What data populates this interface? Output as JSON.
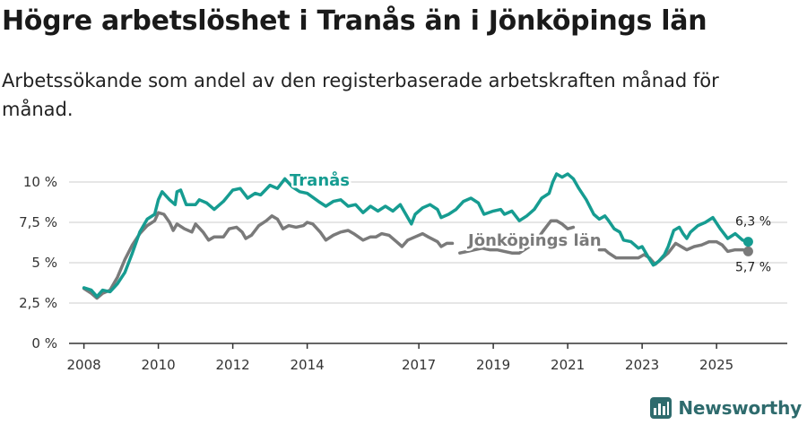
{
  "title": "Högre arbetslöshet i Tranås än i Jönköpings län",
  "subtitle": "Arbetssökande som andel av den registerbaserade arbetskraften månad för månad.",
  "brand": "Newsworthy",
  "colors": {
    "tranas": "#169c91",
    "jonkoping": "#7a7a7a",
    "grid": "#dddddd",
    "axis": "#333333"
  },
  "chart_data": {
    "type": "line",
    "ylim": [
      0,
      10
    ],
    "xlim": [
      2007.6,
      2026.9
    ],
    "y_ticks": [
      0,
      2.5,
      5,
      7.5,
      10
    ],
    "y_tick_labels": [
      "0 %",
      "2,5 %",
      "5 %",
      "7,5 %",
      "10 %"
    ],
    "x_ticks": [
      2008,
      2010,
      2012,
      2014,
      2017,
      2019,
      2021,
      2023,
      2025
    ],
    "x_tick_labels": [
      "2008",
      "2010",
      "2012",
      "2014",
      "2017",
      "2019",
      "2021",
      "2023",
      "2025"
    ],
    "grid": true,
    "series": [
      {
        "name": "Tranås",
        "label": "Tranås",
        "end_label": "6,3 %",
        "points": [
          [
            2008.0,
            3.45
          ],
          [
            2008.2,
            3.3
          ],
          [
            2008.35,
            2.9
          ],
          [
            2008.5,
            3.3
          ],
          [
            2008.7,
            3.2
          ],
          [
            2008.9,
            3.7
          ],
          [
            2009.1,
            4.4
          ],
          [
            2009.3,
            5.6
          ],
          [
            2009.5,
            6.9
          ],
          [
            2009.7,
            7.7
          ],
          [
            2009.9,
            8.0
          ],
          [
            2010.0,
            8.9
          ],
          [
            2010.1,
            9.4
          ],
          [
            2010.3,
            8.9
          ],
          [
            2010.45,
            8.6
          ],
          [
            2010.5,
            9.4
          ],
          [
            2010.6,
            9.5
          ],
          [
            2010.75,
            8.6
          ],
          [
            2011.0,
            8.6
          ],
          [
            2011.1,
            8.9
          ],
          [
            2011.3,
            8.7
          ],
          [
            2011.5,
            8.3
          ],
          [
            2011.75,
            8.8
          ],
          [
            2012.0,
            9.5
          ],
          [
            2012.2,
            9.6
          ],
          [
            2012.4,
            9.0
          ],
          [
            2012.6,
            9.3
          ],
          [
            2012.75,
            9.2
          ],
          [
            2013.0,
            9.8
          ],
          [
            2013.2,
            9.6
          ],
          [
            2013.4,
            10.2
          ],
          [
            2013.6,
            9.7
          ],
          [
            2013.8,
            9.4
          ],
          [
            2014.0,
            9.3
          ],
          [
            2014.3,
            8.8
          ],
          [
            2014.5,
            8.5
          ],
          [
            2014.7,
            8.8
          ],
          [
            2014.9,
            8.9
          ],
          [
            2015.1,
            8.5
          ],
          [
            2015.3,
            8.6
          ],
          [
            2015.5,
            8.1
          ],
          [
            2015.7,
            8.5
          ],
          [
            2015.9,
            8.2
          ],
          [
            2016.1,
            8.5
          ],
          [
            2016.3,
            8.2
          ],
          [
            2016.5,
            8.6
          ],
          [
            2016.65,
            8.0
          ],
          [
            2016.8,
            7.4
          ],
          [
            2016.9,
            8.0
          ],
          [
            2017.1,
            8.4
          ],
          [
            2017.3,
            8.6
          ],
          [
            2017.5,
            8.3
          ],
          [
            2017.6,
            7.8
          ],
          [
            2017.8,
            8.0
          ],
          [
            2018.0,
            8.3
          ],
          [
            2018.2,
            8.8
          ],
          [
            2018.4,
            9.0
          ],
          [
            2018.6,
            8.7
          ],
          [
            2018.75,
            8.0
          ],
          [
            2019.0,
            8.2
          ],
          [
            2019.2,
            8.3
          ],
          [
            2019.3,
            8.0
          ],
          [
            2019.5,
            8.2
          ],
          [
            2019.7,
            7.6
          ],
          [
            2019.9,
            7.9
          ],
          [
            2020.1,
            8.3
          ],
          [
            2020.3,
            9.0
          ],
          [
            2020.5,
            9.3
          ],
          [
            2020.6,
            10.0
          ],
          [
            2020.7,
            10.5
          ],
          [
            2020.85,
            10.3
          ],
          [
            2021.0,
            10.5
          ],
          [
            2021.15,
            10.2
          ],
          [
            2021.3,
            9.6
          ],
          [
            2021.5,
            8.9
          ],
          [
            2021.7,
            8.0
          ],
          [
            2021.85,
            7.7
          ],
          [
            2022.0,
            7.9
          ],
          [
            2022.1,
            7.6
          ],
          [
            2022.25,
            7.1
          ],
          [
            2022.4,
            6.9
          ],
          [
            2022.5,
            6.4
          ],
          [
            2022.7,
            6.3
          ],
          [
            2022.9,
            5.9
          ],
          [
            2023.0,
            6.0
          ],
          [
            2023.15,
            5.4
          ],
          [
            2023.3,
            4.85
          ],
          [
            2023.45,
            5.1
          ],
          [
            2023.6,
            5.5
          ],
          [
            2023.7,
            6.0
          ],
          [
            2023.85,
            7.0
          ],
          [
            2024.0,
            7.2
          ],
          [
            2024.1,
            6.8
          ],
          [
            2024.2,
            6.5
          ],
          [
            2024.3,
            6.9
          ],
          [
            2024.5,
            7.3
          ],
          [
            2024.7,
            7.5
          ],
          [
            2024.9,
            7.8
          ],
          [
            2025.1,
            7.1
          ],
          [
            2025.3,
            6.5
          ],
          [
            2025.5,
            6.8
          ],
          [
            2025.7,
            6.4
          ],
          [
            2025.85,
            6.3
          ]
        ]
      },
      {
        "name": "Jönköpings län",
        "label": "Jönköpings län",
        "end_label": "5,7 %",
        "points": [
          [
            2008.0,
            3.4
          ],
          [
            2008.2,
            3.1
          ],
          [
            2008.35,
            2.8
          ],
          [
            2008.5,
            3.1
          ],
          [
            2008.7,
            3.3
          ],
          [
            2008.9,
            4.1
          ],
          [
            2009.1,
            5.2
          ],
          [
            2009.3,
            6.1
          ],
          [
            2009.5,
            6.8
          ],
          [
            2009.7,
            7.3
          ],
          [
            2009.9,
            7.6
          ],
          [
            2010.0,
            8.1
          ],
          [
            2010.15,
            8.0
          ],
          [
            2010.3,
            7.5
          ],
          [
            2010.4,
            7.0
          ],
          [
            2010.5,
            7.4
          ],
          [
            2010.7,
            7.1
          ],
          [
            2010.9,
            6.9
          ],
          [
            2011.0,
            7.4
          ],
          [
            2011.2,
            6.9
          ],
          [
            2011.35,
            6.4
          ],
          [
            2011.5,
            6.6
          ],
          [
            2011.75,
            6.6
          ],
          [
            2011.9,
            7.1
          ],
          [
            2012.1,
            7.2
          ],
          [
            2012.25,
            6.9
          ],
          [
            2012.35,
            6.5
          ],
          [
            2012.5,
            6.7
          ],
          [
            2012.7,
            7.3
          ],
          [
            2012.9,
            7.6
          ],
          [
            2013.05,
            7.9
          ],
          [
            2013.2,
            7.7
          ],
          [
            2013.35,
            7.1
          ],
          [
            2013.5,
            7.3
          ],
          [
            2013.7,
            7.2
          ],
          [
            2013.9,
            7.3
          ],
          [
            2014.0,
            7.5
          ],
          [
            2014.15,
            7.4
          ],
          [
            2014.35,
            6.9
          ],
          [
            2014.5,
            6.4
          ],
          [
            2014.7,
            6.7
          ],
          [
            2014.9,
            6.9
          ],
          [
            2015.1,
            7.0
          ],
          [
            2015.25,
            6.8
          ],
          [
            2015.5,
            6.4
          ],
          [
            2015.7,
            6.6
          ],
          [
            2015.85,
            6.6
          ],
          [
            2016.0,
            6.8
          ],
          [
            2016.2,
            6.7
          ],
          [
            2016.4,
            6.3
          ],
          [
            2016.55,
            6.0
          ],
          [
            2016.7,
            6.4
          ],
          [
            2016.9,
            6.6
          ],
          [
            2017.1,
            6.8
          ],
          [
            2017.25,
            6.6
          ],
          [
            2017.5,
            6.3
          ],
          [
            2017.6,
            6.0
          ],
          [
            2017.75,
            6.2
          ],
          [
            2017.9,
            6.2
          ]
        ],
        "points_b": [
          [
            2020.35,
            7.0
          ],
          [
            2020.55,
            7.6
          ],
          [
            2020.7,
            7.6
          ],
          [
            2020.85,
            7.4
          ],
          [
            2021.0,
            7.1
          ],
          [
            2021.15,
            7.2
          ]
        ],
        "points_c": [
          [
            2021.85,
            5.8
          ],
          [
            2022.0,
            5.8
          ],
          [
            2022.1,
            5.6
          ],
          [
            2022.3,
            5.3
          ],
          [
            2022.5,
            5.3
          ],
          [
            2022.7,
            5.3
          ],
          [
            2022.9,
            5.3
          ],
          [
            2023.05,
            5.5
          ],
          [
            2023.2,
            5.3
          ],
          [
            2023.35,
            4.9
          ],
          [
            2023.5,
            5.2
          ],
          [
            2023.7,
            5.6
          ],
          [
            2023.9,
            6.2
          ],
          [
            2024.05,
            6.0
          ],
          [
            2024.2,
            5.8
          ],
          [
            2024.4,
            6.0
          ],
          [
            2024.6,
            6.1
          ],
          [
            2024.8,
            6.3
          ],
          [
            2025.0,
            6.3
          ],
          [
            2025.15,
            6.1
          ],
          [
            2025.3,
            5.7
          ],
          [
            2025.5,
            5.8
          ],
          [
            2025.7,
            5.8
          ],
          [
            2025.85,
            5.7
          ]
        ],
        "points_d": [
          [
            2018.1,
            5.6
          ],
          [
            2018.3,
            5.7
          ],
          [
            2018.5,
            5.8
          ],
          [
            2018.7,
            5.9
          ],
          [
            2018.9,
            5.8
          ],
          [
            2019.1,
            5.8
          ],
          [
            2019.3,
            5.7
          ],
          [
            2019.5,
            5.6
          ],
          [
            2019.7,
            5.6
          ],
          [
            2019.9,
            5.9
          ],
          [
            2020.1,
            6.2
          ],
          [
            2020.35,
            7.0
          ]
        ]
      }
    ]
  }
}
